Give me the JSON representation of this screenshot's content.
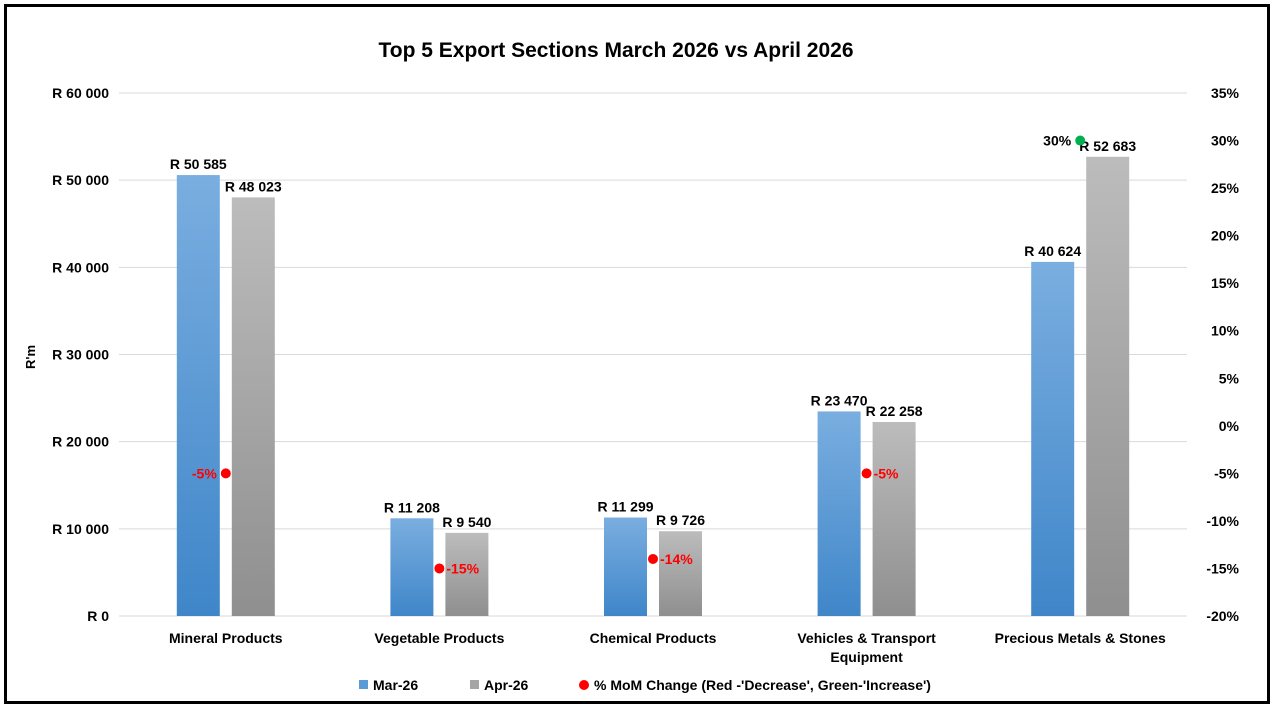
{
  "chart_data": {
    "type": "bar",
    "title": "Top 5 Export Sections March 2026 vs April 2026",
    "ylabel": "R'm",
    "categories": [
      [
        "Mineral Products"
      ],
      [
        "Vegetable Products"
      ],
      [
        "Chemical Products"
      ],
      [
        "Vehicles & Transport",
        "Equipment"
      ],
      [
        "Precious Metals & Stones"
      ]
    ],
    "series": [
      {
        "name": "Mar-26",
        "values": [
          50585,
          11208,
          11299,
          23470,
          40624
        ],
        "labels": [
          "R 50 585",
          "R 11 208",
          "R 11 299",
          "R 23 470",
          "R 40 624"
        ]
      },
      {
        "name": "Apr-26",
        "values": [
          48023,
          9540,
          9726,
          22258,
          52683
        ],
        "labels": [
          "R 48 023",
          "R 9 540",
          "R 9 726",
          "R 22 258",
          "R 52 683"
        ]
      }
    ],
    "mom_change": {
      "name": "% MoM Change (Red -'Decrease', Green-'Increase')",
      "values": [
        -5,
        -15,
        -14,
        -5,
        30
      ],
      "labels": [
        "-5%",
        "-15%",
        "-14%",
        "-5%",
        "30%"
      ]
    },
    "ylim": [
      0,
      60000
    ],
    "y_ticks": [
      {
        "value": 0,
        "label": "R 0"
      },
      {
        "value": 10000,
        "label": "R 10 000"
      },
      {
        "value": 20000,
        "label": "R 20 000"
      },
      {
        "value": 30000,
        "label": "R 30 000"
      },
      {
        "value": 40000,
        "label": "R 40 000"
      },
      {
        "value": 50000,
        "label": "R 50 000"
      },
      {
        "value": 60000,
        "label": "R 60 000"
      }
    ],
    "y2lim": [
      -20,
      35
    ],
    "y2_ticks": [
      {
        "value": -20,
        "label": "-20%"
      },
      {
        "value": -15,
        "label": "-15%"
      },
      {
        "value": -10,
        "label": "-10%"
      },
      {
        "value": -5,
        "label": "-5%"
      },
      {
        "value": 0,
        "label": "0%"
      },
      {
        "value": 5,
        "label": "5%"
      },
      {
        "value": 10,
        "label": "10%"
      },
      {
        "value": 15,
        "label": "15%"
      },
      {
        "value": 20,
        "label": "20%"
      },
      {
        "value": 25,
        "label": "25%"
      },
      {
        "value": 30,
        "label": "30%"
      },
      {
        "value": 35,
        "label": "35%"
      }
    ],
    "grid": true,
    "legend_position": "bottom",
    "colors": {
      "mar": "#5b9bd5",
      "apr": "#a5a5a5",
      "decrease": "#ff0000",
      "increase": "#00b050",
      "grid": "#d9d9d9"
    }
  }
}
